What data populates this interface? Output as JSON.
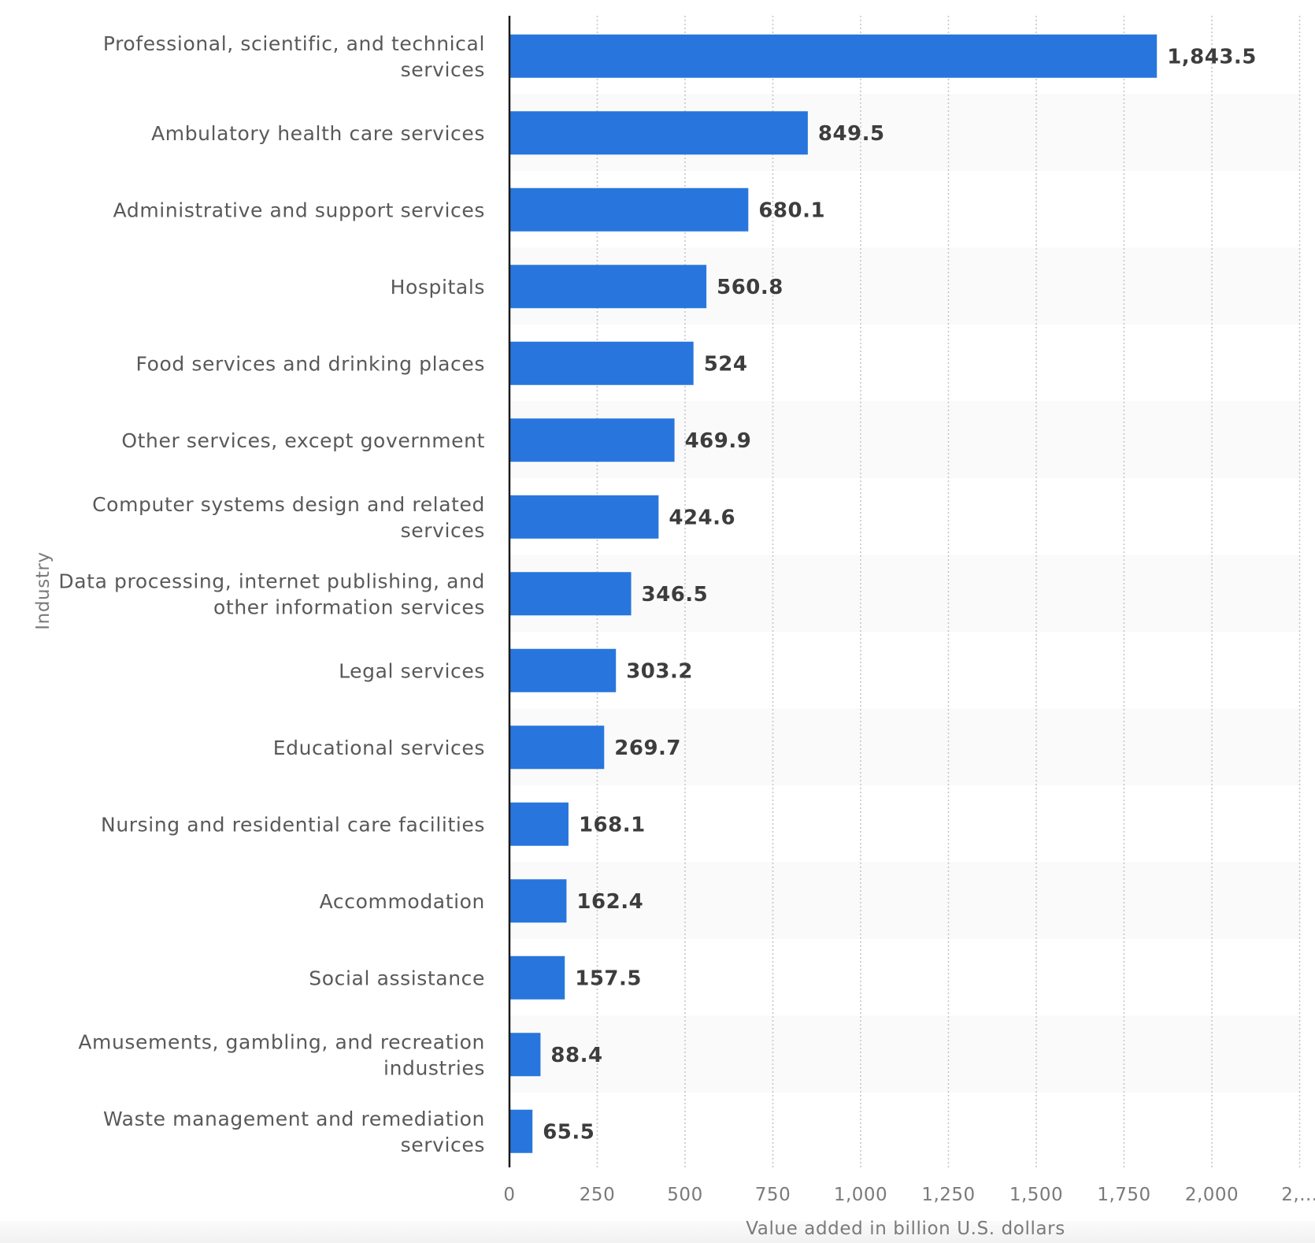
{
  "chart_data": {
    "type": "bar",
    "orientation": "horizontal",
    "title": "",
    "xlabel": "Value added in billion U.S. dollars",
    "ylabel": "Industry",
    "xlim": [
      0,
      2250
    ],
    "x_ticks": [
      "0",
      "250",
      "500",
      "750",
      "1,000",
      "1,250",
      "1,500",
      "1,750",
      "2,000",
      "2,..."
    ],
    "x_tick_values": [
      0,
      250,
      500,
      750,
      1000,
      1250,
      1500,
      1750,
      2000,
      2250
    ],
    "grid": "vertical dotted",
    "legend": "none",
    "categories": [
      [
        "Professional, scientific, and technical",
        "services"
      ],
      [
        "Ambulatory health care services"
      ],
      [
        "Administrative and support services"
      ],
      [
        "Hospitals"
      ],
      [
        "Food services and drinking places"
      ],
      [
        "Other services, except government"
      ],
      [
        "Computer systems design and related",
        "services"
      ],
      [
        "Data processing, internet publishing, and",
        "other information services"
      ],
      [
        "Legal services"
      ],
      [
        "Educational services"
      ],
      [
        "Nursing and residential care facilities"
      ],
      [
        "Accommodation"
      ],
      [
        "Social assistance"
      ],
      [
        "Amusements, gambling, and recreation",
        "industries"
      ],
      [
        "Waste management and remediation",
        "services"
      ]
    ],
    "values": [
      1843.5,
      849.5,
      680.1,
      560.8,
      524,
      469.9,
      424.6,
      346.5,
      303.2,
      269.7,
      168.1,
      162.4,
      157.5,
      88.4,
      65.5
    ],
    "value_labels": [
      "1,843.5",
      "849.5",
      "680.1",
      "560.8",
      "524",
      "469.9",
      "424.6",
      "346.5",
      "303.2",
      "269.7",
      "168.1",
      "162.4",
      "157.5",
      "88.4",
      "65.5"
    ],
    "colors": {
      "bar": "#2876dd",
      "band": "#fafafa",
      "axis": "#1a1a1a",
      "grid": "#c4c4c4"
    }
  }
}
